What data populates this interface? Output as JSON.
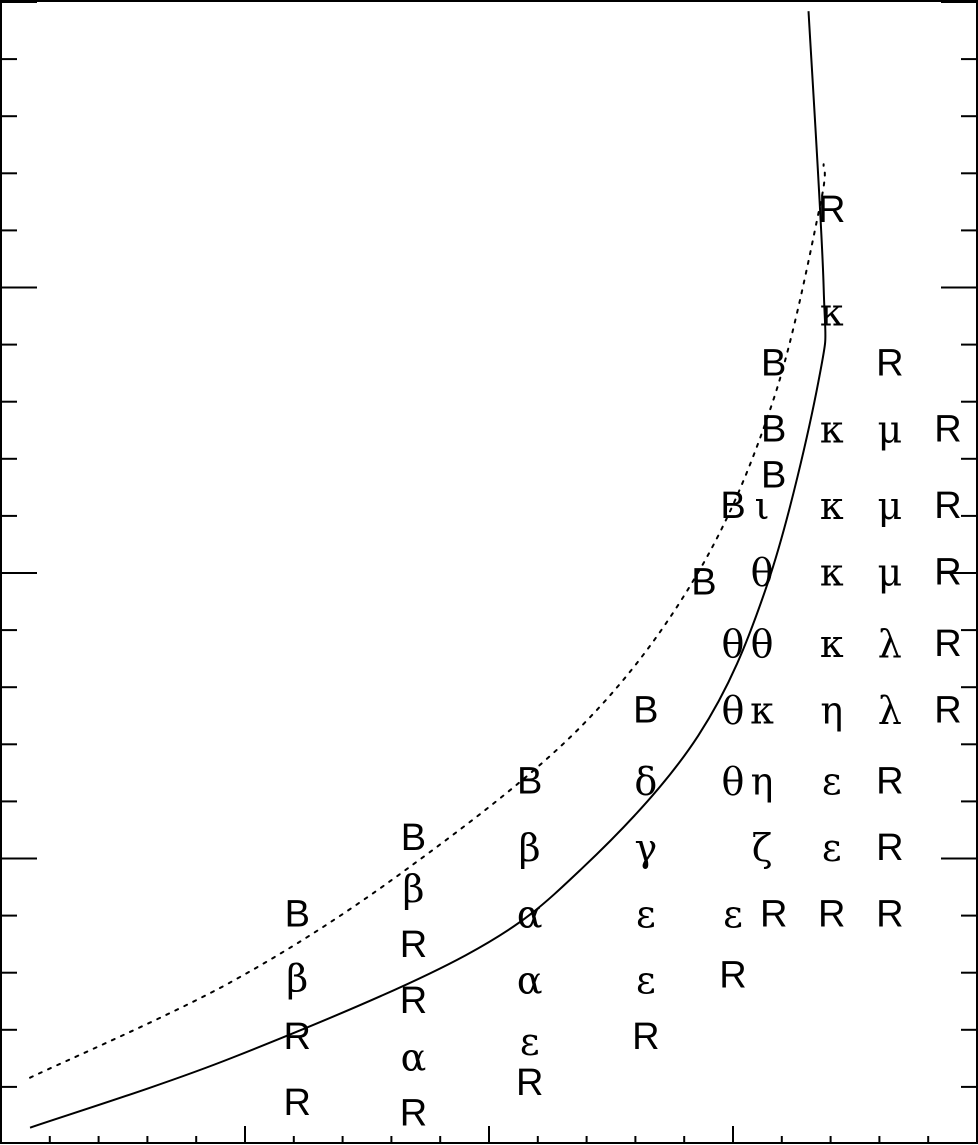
{
  "chart_data": {
    "type": "scatter",
    "title": "",
    "xlabel": "",
    "ylabel": "",
    "grid": false,
    "legend": "none",
    "curves": [
      {
        "style": "solid",
        "points": [
          [
            0.25,
            0.16
          ],
          [
            2,
            0.85
          ],
          [
            4,
            1.85
          ],
          [
            5,
            2.7
          ],
          [
            6,
            4.0
          ],
          [
            6.6,
            5.5
          ],
          [
            7.04,
            7.5
          ],
          [
            7.08,
            8.4
          ],
          [
            6.95,
            11.1
          ]
        ]
      },
      {
        "style": "dotted",
        "points": [
          [
            0.25,
            0.65
          ],
          [
            2,
            1.6
          ],
          [
            3.5,
            2.7
          ],
          [
            5,
            4.1
          ],
          [
            6,
            5.6
          ],
          [
            6.65,
            7.3
          ],
          [
            7.05,
            9.2
          ],
          [
            7.08,
            9.6
          ]
        ]
      }
    ],
    "markers": [
      {
        "text": "R",
        "x": 2.55,
        "y": 0.4
      },
      {
        "text": "R",
        "x": 2.55,
        "y": 1.05
      },
      {
        "text": "β",
        "x": 2.55,
        "y": 1.62
      },
      {
        "text": "B",
        "x": 2.55,
        "y": 2.25
      },
      {
        "text": "R",
        "x": 3.55,
        "y": 0.3
      },
      {
        "text": "α",
        "x": 3.55,
        "y": 0.85
      },
      {
        "text": "R",
        "x": 3.55,
        "y": 1.4
      },
      {
        "text": "R",
        "x": 3.55,
        "y": 1.95
      },
      {
        "text": "β",
        "x": 3.55,
        "y": 2.5
      },
      {
        "text": "B",
        "x": 3.55,
        "y": 3.0
      },
      {
        "text": "R",
        "x": 4.55,
        "y": 0.6
      },
      {
        "text": "ε",
        "x": 4.55,
        "y": 1.0
      },
      {
        "text": "α",
        "x": 4.55,
        "y": 1.6
      },
      {
        "text": "α",
        "x": 4.55,
        "y": 2.25
      },
      {
        "text": "β",
        "x": 4.55,
        "y": 2.9
      },
      {
        "text": "B",
        "x": 4.55,
        "y": 3.55
      },
      {
        "text": "R",
        "x": 5.55,
        "y": 1.05
      },
      {
        "text": "ε",
        "x": 5.55,
        "y": 1.6
      },
      {
        "text": "ε",
        "x": 5.55,
        "y": 2.25
      },
      {
        "text": "γ",
        "x": 5.55,
        "y": 2.9
      },
      {
        "text": "δ",
        "x": 5.55,
        "y": 3.55
      },
      {
        "text": "B",
        "x": 5.55,
        "y": 4.25
      },
      {
        "text": "R",
        "x": 6.3,
        "y": 1.65
      },
      {
        "text": "ε",
        "x": 6.3,
        "y": 2.25
      },
      {
        "text": "θ",
        "x": 6.3,
        "y": 3.55
      },
      {
        "text": "θ",
        "x": 6.3,
        "y": 4.25
      },
      {
        "text": "θ",
        "x": 6.3,
        "y": 4.9
      },
      {
        "text": "B",
        "x": 6.05,
        "y": 5.5
      },
      {
        "text": "B",
        "x": 6.3,
        "y": 6.25
      },
      {
        "text": "R",
        "x": 6.65,
        "y": 2.25
      },
      {
        "text": "ζ",
        "x": 6.55,
        "y": 2.9
      },
      {
        "text": "η",
        "x": 6.55,
        "y": 3.55
      },
      {
        "text": "κ",
        "x": 6.55,
        "y": 4.25
      },
      {
        "text": "θ",
        "x": 6.55,
        "y": 4.9
      },
      {
        "text": "θ",
        "x": 6.55,
        "y": 5.6
      },
      {
        "text": "ι",
        "x": 6.55,
        "y": 6.25
      },
      {
        "text": "B",
        "x": 6.65,
        "y": 6.55
      },
      {
        "text": "B",
        "x": 6.65,
        "y": 7.0
      },
      {
        "text": "B",
        "x": 6.65,
        "y": 7.65
      },
      {
        "text": "R",
        "x": 7.15,
        "y": 2.25
      },
      {
        "text": "ε",
        "x": 7.15,
        "y": 2.9
      },
      {
        "text": "ε",
        "x": 7.15,
        "y": 3.55
      },
      {
        "text": "η",
        "x": 7.15,
        "y": 4.25
      },
      {
        "text": "κ",
        "x": 7.15,
        "y": 4.9
      },
      {
        "text": "κ",
        "x": 7.15,
        "y": 5.6
      },
      {
        "text": "κ",
        "x": 7.15,
        "y": 6.25
      },
      {
        "text": "κ",
        "x": 7.15,
        "y": 7.0
      },
      {
        "text": "κ",
        "x": 7.15,
        "y": 8.15
      },
      {
        "text": "R",
        "x": 7.15,
        "y": 9.15
      },
      {
        "text": "R",
        "x": 7.65,
        "y": 2.25
      },
      {
        "text": "R",
        "x": 7.65,
        "y": 2.9
      },
      {
        "text": "R",
        "x": 7.65,
        "y": 3.55
      },
      {
        "text": "λ",
        "x": 7.65,
        "y": 4.25
      },
      {
        "text": "λ",
        "x": 7.65,
        "y": 4.9
      },
      {
        "text": "μ",
        "x": 7.65,
        "y": 5.6
      },
      {
        "text": "μ",
        "x": 7.65,
        "y": 6.25
      },
      {
        "text": "μ",
        "x": 7.65,
        "y": 7.0
      },
      {
        "text": "R",
        "x": 7.65,
        "y": 7.65
      },
      {
        "text": "R",
        "x": 8.15,
        "y": 4.25
      },
      {
        "text": "R",
        "x": 8.15,
        "y": 4.9
      },
      {
        "text": "R",
        "x": 8.15,
        "y": 5.6
      },
      {
        "text": "R",
        "x": 8.15,
        "y": 6.25
      },
      {
        "text": "R",
        "x": 8.15,
        "y": 7.0
      }
    ]
  }
}
